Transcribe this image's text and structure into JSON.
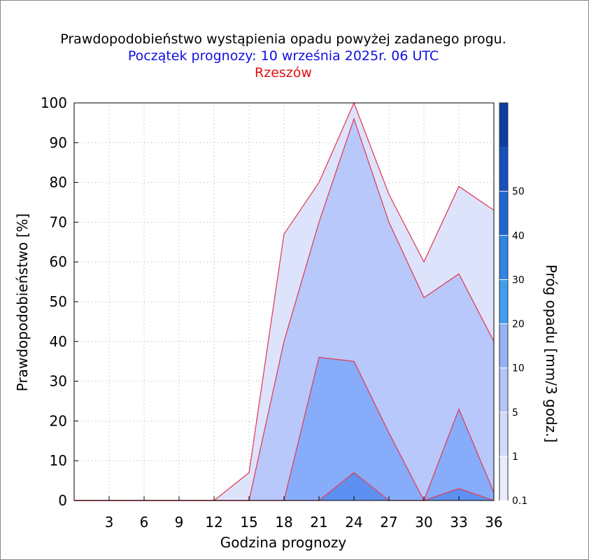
{
  "chart_data": {
    "type": "area",
    "title": "Prawdopodobieństwo wystąpienia opadu powyżej zadanego progu.",
    "subtitle": "Początek prognozy: 10 września 2025r. 06 UTC",
    "location": "Rzeszów",
    "xlabel": "Godzina prognozy",
    "ylabel": "Prawdopodobieństwo [%]",
    "colorbar_label": "Próg opadu [mm/3 godz.]",
    "xlim": [
      0,
      36
    ],
    "ylim": [
      0,
      100
    ],
    "x_ticks": [
      3,
      6,
      9,
      12,
      15,
      18,
      21,
      24,
      27,
      30,
      33,
      36
    ],
    "y_ticks": [
      0,
      10,
      20,
      30,
      40,
      50,
      60,
      70,
      80,
      90,
      100
    ],
    "grid": true,
    "x": [
      0,
      3,
      6,
      9,
      12,
      15,
      18,
      21,
      24,
      27,
      30,
      33,
      36
    ],
    "series": [
      {
        "threshold": "0.1",
        "color": "#dde3fb",
        "values": [
          0,
          0,
          0,
          0,
          0,
          7,
          67,
          80,
          100,
          77,
          60,
          79,
          73
        ]
      },
      {
        "threshold": "1",
        "color": "#b8c8fa",
        "values": [
          0,
          0,
          0,
          0,
          0,
          0,
          40,
          70,
          96,
          70,
          51,
          57,
          40
        ]
      },
      {
        "threshold": "5",
        "color": "#86acfa",
        "values": [
          0,
          0,
          0,
          0,
          0,
          0,
          0,
          36,
          35,
          17,
          0,
          23,
          2
        ]
      },
      {
        "threshold": "10",
        "color": "#5d90f0",
        "values": [
          0,
          0,
          0,
          0,
          0,
          0,
          0,
          0,
          7,
          0,
          0,
          3,
          0
        ]
      }
    ],
    "colorbar": {
      "labels": [
        "0.1",
        "1",
        "5",
        "10",
        "20",
        "30",
        "40",
        "50"
      ],
      "colors": [
        "#e8ecfd",
        "#d0dafb",
        "#b4c6f9",
        "#94b2f6",
        "#3fa0f0",
        "#2f86e5",
        "#1f66d3",
        "#1550bd",
        "#0f3da6"
      ]
    }
  }
}
